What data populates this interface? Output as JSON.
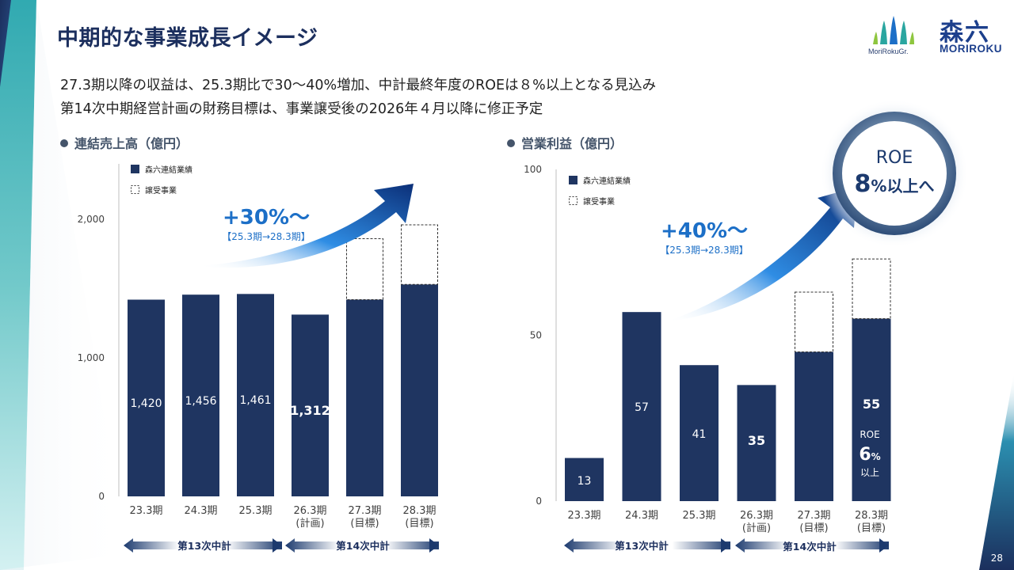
{
  "page": {
    "title": "中期的な事業成長イメージ",
    "subtitle_lines": [
      "27.3期以降の収益は、25.3期比で30～40%増加、中計最終年度のROEは８%以上となる見込み",
      "第14次中期経営計画の財務目標は、事業譲受後の2026年４月以降に修正予定"
    ],
    "page_number": "28"
  },
  "logos": {
    "group_name": "MoriRokuGr.",
    "kanji": "森六",
    "brand": "MORIROKU"
  },
  "colors": {
    "bar": "#1f3561",
    "accent": "#1c6fc7",
    "title": "#1c2f5e",
    "section": "#44546a"
  },
  "roe_badge": {
    "line1": "ROE",
    "line2_num": "8",
    "line2_rest": "%以上へ"
  },
  "plan_arrows": {
    "p13": "第13次中計",
    "p14": "第14次中計"
  },
  "chart_data": [
    {
      "type": "bar",
      "title": "連結売上高（億円）",
      "legend": [
        "森六連結業績",
        "譲受事業"
      ],
      "categories": [
        "23.3期",
        "24.3期",
        "25.3期",
        "26.3期\n(計画)",
        "27.3期\n(目標)",
        "28.3期\n(目標)"
      ],
      "series": [
        {
          "name": "森六連結業績",
          "values": [
            1420,
            1456,
            1461,
            1312,
            1420,
            1530
          ]
        },
        {
          "name": "譲受事業",
          "values": [
            0,
            0,
            0,
            0,
            440,
            430
          ]
        }
      ],
      "data_labels": [
        "1,420",
        "1,456",
        "1,461",
        "1,312",
        "",
        ""
      ],
      "bold_labels": [
        false,
        false,
        false,
        true,
        false,
        false
      ],
      "ylim": [
        0,
        2400
      ],
      "yticks": [
        0,
        1000,
        2000
      ],
      "ytick_labels": [
        "0",
        "1,000",
        "2,000"
      ],
      "growth_label": "+30%～",
      "growth_sub": "【25.3期→28.3期】"
    },
    {
      "type": "bar",
      "title": "営業利益（億円）",
      "legend": [
        "森六連結業績",
        "譲受事業"
      ],
      "categories": [
        "23.3期",
        "24.3期",
        "25.3期",
        "26.3期\n(計画)",
        "27.3期\n(目標)",
        "28.3期\n(目標)"
      ],
      "series": [
        {
          "name": "森六連結業績",
          "values": [
            13,
            57,
            41,
            35,
            45,
            55
          ]
        },
        {
          "name": "譲受事業",
          "values": [
            0,
            0,
            0,
            0,
            18,
            18
          ]
        }
      ],
      "data_labels": [
        "13",
        "57",
        "41",
        "35",
        "",
        "55"
      ],
      "bold_labels": [
        false,
        false,
        false,
        true,
        false,
        true
      ],
      "extra_label": {
        "l1": "ROE",
        "l2": "6",
        "l2_unit": "%",
        "l3": "以上"
      },
      "ylim": [
        0,
        100
      ],
      "yticks": [
        0,
        50,
        100
      ],
      "ytick_labels": [
        "0",
        "50",
        "100"
      ],
      "growth_label": "+40%～",
      "growth_sub": "【25.3期→28.3期】"
    }
  ]
}
